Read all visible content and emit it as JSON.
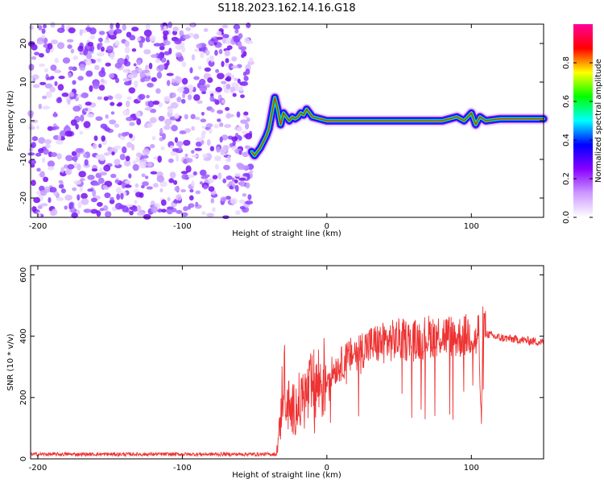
{
  "title": "S118.2023.162.14.16.G18",
  "chart_data": [
    {
      "type": "heatmap",
      "xlabel": "Height of straight line (km)",
      "ylabel": "Frequency (Hz)",
      "xlim": [
        -205,
        150
      ],
      "ylim": [
        -25,
        25
      ],
      "xticks": [
        -200,
        -100,
        0,
        100
      ],
      "yticks": [
        -20,
        -10,
        0,
        10,
        20
      ],
      "colorbar": {
        "label": "Normalized spectral amplitude",
        "range": [
          0,
          1
        ],
        "ticks": [
          0.0,
          0.2,
          0.4,
          0.6,
          0.8
        ],
        "colormap": [
          "#ffffff",
          "#cc99ff",
          "#8800ff",
          "#0000ff",
          "#00ffff",
          "#00ff00",
          "#ffff00",
          "#ff0000",
          "#ff0099"
        ]
      },
      "noise_region": {
        "x": [
          -205,
          -52
        ],
        "y": [
          -25,
          25
        ]
      },
      "ridge": {
        "x": [
          -52,
          -50,
          -46,
          -42,
          -40,
          -38,
          -36,
          -34,
          -32,
          -30,
          -28,
          -26,
          -24,
          -22,
          -20,
          -18,
          -16,
          -14,
          -12,
          -10,
          -5,
          0,
          20,
          40,
          60,
          80,
          90,
          95,
          100,
          103,
          106,
          110,
          120,
          150
        ],
        "y": [
          -8,
          -9,
          -7,
          -4,
          -2,
          2,
          6,
          3,
          -1,
          2,
          1,
          0,
          1,
          0.5,
          1,
          2,
          1.5,
          3,
          2,
          1,
          0.5,
          0,
          0,
          0,
          0,
          0,
          1,
          0,
          2,
          -1,
          1,
          0,
          0.5,
          0.5
        ]
      }
    },
    {
      "type": "line",
      "xlabel": "Height of straight line (km)",
      "ylabel": "SNR (10 * v/v)",
      "xlim": [
        -205,
        150
      ],
      "ylim": [
        0,
        630
      ],
      "xticks": [
        -200,
        -100,
        0,
        100
      ],
      "yticks": [
        0,
        200,
        400,
        600
      ],
      "color": "#ee3333",
      "series": [
        {
          "x": [
            -205,
            -150,
            -100,
            -50,
            -35,
            -32,
            -30,
            -28,
            -25,
            -20,
            -15,
            -10,
            -5,
            0,
            10,
            20,
            30,
            40,
            50,
            60,
            70,
            80,
            90,
            95,
            100,
            103,
            105,
            107,
            108,
            110,
            115,
            120,
            130,
            140,
            150
          ],
          "y": [
            15,
            15,
            15,
            15,
            15,
            120,
            300,
            200,
            150,
            180,
            200,
            230,
            250,
            270,
            310,
            350,
            370,
            380,
            390,
            385,
            400,
            405,
            395,
            400,
            410,
            380,
            420,
            100,
            450,
            410,
            400,
            395,
            390,
            385,
            380
          ]
        }
      ]
    }
  ]
}
